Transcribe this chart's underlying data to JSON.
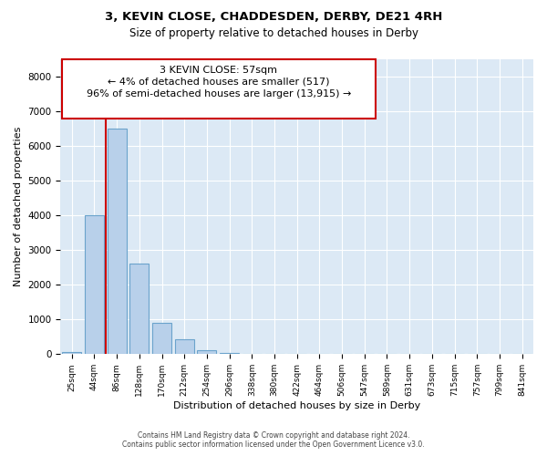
{
  "title": "3, KEVIN CLOSE, CHADDESDEN, DERBY, DE21 4RH",
  "subtitle": "Size of property relative to detached houses in Derby",
  "xlabel": "Distribution of detached houses by size in Derby",
  "ylabel": "Number of detached properties",
  "footer_line1": "Contains HM Land Registry data © Crown copyright and database right 2024.",
  "footer_line2": "Contains public sector information licensed under the Open Government Licence v3.0.",
  "annotation_line1": "3 KEVIN CLOSE: 57sqm",
  "annotation_line2": "← 4% of detached houses are smaller (517)",
  "annotation_line3": "96% of semi-detached houses are larger (13,915) →",
  "bar_color": "#b8d0ea",
  "bar_edge_color": "#6ba3cc",
  "highlight_color": "#cc0000",
  "background_color": "#dce9f5",
  "ylim": [
    0,
    8500
  ],
  "yticks": [
    0,
    1000,
    2000,
    3000,
    4000,
    5000,
    6000,
    7000,
    8000
  ],
  "categories": [
    "25sqm",
    "44sqm",
    "86sqm",
    "128sqm",
    "170sqm",
    "212sqm",
    "254sqm",
    "296sqm",
    "338sqm",
    "380sqm",
    "422sqm",
    "464sqm",
    "506sqm",
    "547sqm",
    "589sqm",
    "631sqm",
    "673sqm",
    "715sqm",
    "757sqm",
    "799sqm",
    "841sqm"
  ],
  "values": [
    50,
    4000,
    6500,
    2600,
    900,
    430,
    115,
    35,
    8,
    0,
    0,
    0,
    0,
    0,
    0,
    0,
    0,
    0,
    0,
    0,
    0
  ],
  "red_line_x": 1.5,
  "annotation_font_size": 8
}
